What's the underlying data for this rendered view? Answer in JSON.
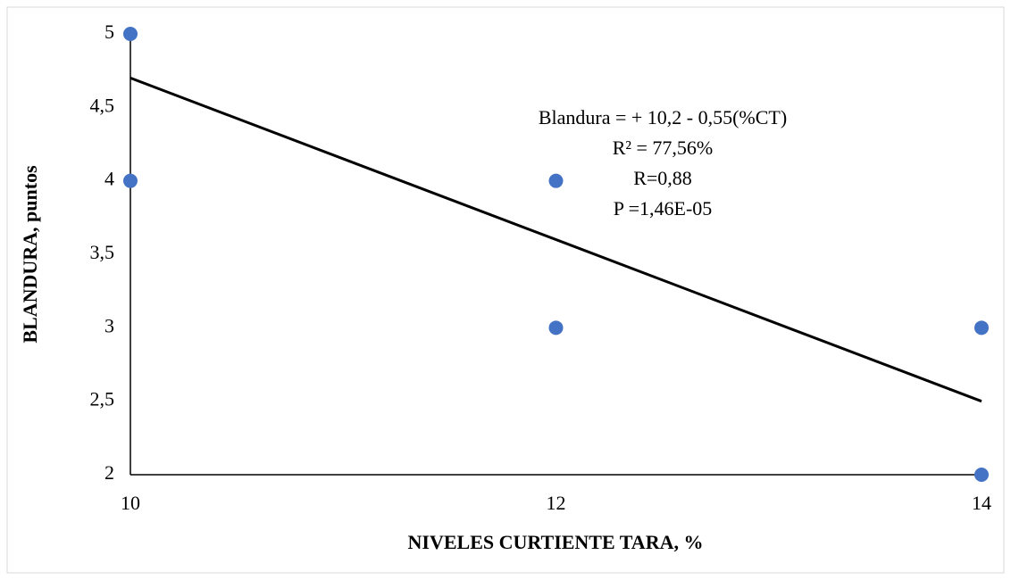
{
  "chart_data": {
    "type": "scatter",
    "x_label": "NIVELES CURTIENTE TARA, %",
    "y_label": "BLANDURA, puntos",
    "series": [
      {
        "name": "Blandura",
        "color": "#4472c4",
        "x": [
          10,
          10,
          12,
          12,
          14,
          14
        ],
        "values": [
          5,
          4,
          4,
          3,
          3,
          2
        ]
      }
    ],
    "trendline": {
      "color": "#000000",
      "x": [
        10,
        14
      ],
      "values": [
        4.7,
        2.5
      ]
    },
    "annotations": [
      "Blandura = + 10,2  - 0,55(%CT)",
      "R² =  77,56%",
      "R=0,88",
      "P =1,46E-05"
    ],
    "xlim": [
      10,
      14
    ],
    "xticks": [
      10,
      12,
      14
    ],
    "ylim": [
      2,
      5
    ],
    "yticks": [
      2,
      {
        "value": 2.5,
        "label": "2,5"
      },
      3,
      {
        "value": 3.5,
        "label": "3,5"
      },
      4,
      {
        "value": 4.5,
        "label": "4,5"
      },
      5
    ],
    "grid": false
  }
}
